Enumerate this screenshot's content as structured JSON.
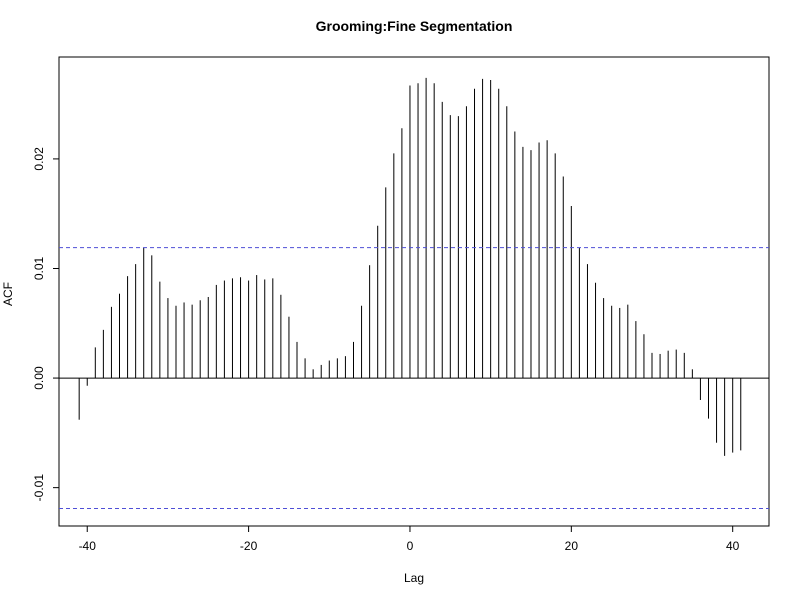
{
  "chart_data": {
    "type": "bar",
    "title": "Grooming:Fine Segmentation",
    "xlabel": "Lag",
    "ylabel": "ACF",
    "xlim": [
      -43.5,
      44.5
    ],
    "ylim": [
      -0.0135,
      0.0293
    ],
    "x_ticks": [
      -40,
      -20,
      0,
      20,
      40
    ],
    "x_tick_labels": [
      "-40",
      "-20",
      "0",
      "20",
      "40"
    ],
    "y_ticks": [
      -0.01,
      0.0,
      0.01,
      0.02
    ],
    "y_tick_labels": [
      "-0.01",
      "0.00",
      "0.01",
      "0.02"
    ],
    "confidence_bounds": [
      0.0119,
      -0.0119
    ],
    "confidence_color": "#4f4fd6",
    "bar_color": "#000000",
    "grid": false,
    "lags": [
      -41,
      -40,
      -39,
      -38,
      -37,
      -36,
      -35,
      -34,
      -33,
      -32,
      -31,
      -30,
      -29,
      -28,
      -27,
      -26,
      -25,
      -24,
      -23,
      -22,
      -21,
      -20,
      -19,
      -18,
      -17,
      -16,
      -15,
      -14,
      -13,
      -12,
      -11,
      -10,
      -9,
      -8,
      -7,
      -6,
      -5,
      -4,
      -3,
      -2,
      -1,
      0,
      1,
      2,
      3,
      4,
      5,
      6,
      7,
      8,
      9,
      10,
      11,
      12,
      13,
      14,
      15,
      16,
      17,
      18,
      19,
      20,
      21,
      22,
      23,
      24,
      25,
      26,
      27,
      28,
      29,
      30,
      31,
      32,
      33,
      34,
      35,
      36,
      37,
      38,
      39,
      40,
      41
    ],
    "values": [
      -0.0038,
      -0.0007,
      0.0028,
      0.0044,
      0.0065,
      0.0077,
      0.0093,
      0.0104,
      0.0119,
      0.0112,
      0.0088,
      0.0073,
      0.0066,
      0.0069,
      0.0067,
      0.0071,
      0.0074,
      0.0085,
      0.0089,
      0.0091,
      0.0092,
      0.0089,
      0.0094,
      0.009,
      0.0091,
      0.0076,
      0.0056,
      0.0033,
      0.0018,
      0.0008,
      0.0012,
      0.0016,
      0.0018,
      0.002,
      0.0033,
      0.0066,
      0.0103,
      0.0139,
      0.0174,
      0.0205,
      0.0228,
      0.0267,
      0.0269,
      0.0274,
      0.0269,
      0.0252,
      0.024,
      0.0239,
      0.0248,
      0.0264,
      0.0273,
      0.0272,
      0.0264,
      0.0248,
      0.0225,
      0.0211,
      0.0208,
      0.0215,
      0.0217,
      0.0205,
      0.0184,
      0.0157,
      0.0119,
      0.0104,
      0.0087,
      0.0073,
      0.0066,
      0.0064,
      0.0067,
      0.0052,
      0.004,
      0.0023,
      0.0022,
      0.0025,
      0.0026,
      0.0023,
      0.0008,
      -0.002,
      -0.0037,
      -0.0059,
      -0.0071,
      -0.0068,
      -0.0066
    ]
  }
}
